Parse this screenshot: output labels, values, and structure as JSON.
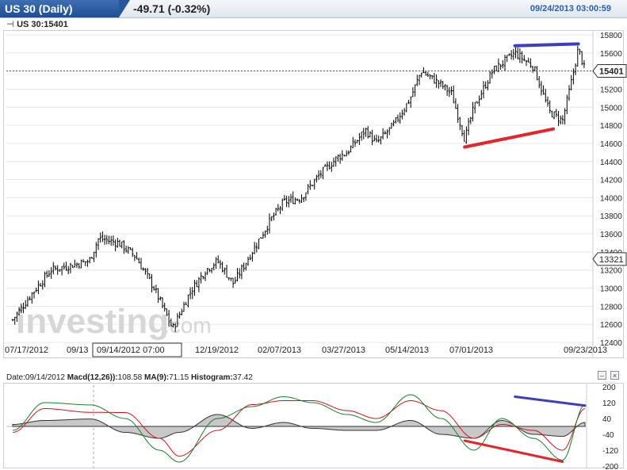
{
  "header": {
    "title": "US 30 (Daily)",
    "change": "-49.71 (-0.32%)",
    "datetime": "09/24/2013 03:00:59"
  },
  "symbol_line": "US 30:15401",
  "icons": {
    "cursor": "crosshair-icon",
    "minimize": "minimize-icon",
    "close": "close-icon"
  },
  "watermark": {
    "left": "investing",
    "right": ".com"
  },
  "colors": {
    "up_tick": "#000000",
    "trend_upper": "#3e3ebd",
    "trend_lower": "#e3262b",
    "macd_line": "#1b7d2a",
    "signal_line": "#c9161d",
    "histogram": "#808080"
  },
  "macd_header": {
    "date": "Date:09/14/2012",
    "macd_label": "Macd(12,26)):",
    "macd_value": "108.58",
    "ma_label": "MA(9):",
    "ma_value": "71.15",
    "hist_label": "Histogram:",
    "hist_value": "37.42"
  },
  "chart_data": [
    {
      "type": "ohlc",
      "title": "US 30 (Daily)",
      "ylim": [
        12400,
        15800
      ],
      "y_ticks": [
        15800,
        15600,
        15400,
        15200,
        15000,
        14800,
        14600,
        14400,
        14200,
        14000,
        13800,
        13600,
        13400,
        13200,
        13000,
        12800,
        12600,
        12400
      ],
      "x_ticks": [
        "07/17/2012",
        "09/13",
        "09/14/2012 07:00",
        "12/19/2012",
        "02/07/2013",
        "03/27/2013",
        "05/14/2013",
        "07/01/2013",
        "09/23/2013"
      ],
      "last_price": 15401,
      "crosshair_price": 13321,
      "close_path_dates": [
        "07/17/2012",
        "08/01/2012",
        "08/15/2012",
        "09/13/2012",
        "09/20/2012",
        "10/05/2012",
        "10/18/2012",
        "11/01/2012",
        "11/15/2012",
        "11/28/2012",
        "12/10/2012",
        "12/19/2012",
        "12/31/2012",
        "01/14/2013",
        "01/28/2013",
        "02/07/2013",
        "02/20/2013",
        "03/06/2013",
        "03/20/2013",
        "03/27/2013",
        "04/10/2013",
        "04/18/2013",
        "05/01/2013",
        "05/14/2013",
        "05/22/2013",
        "06/06/2013",
        "06/14/2013",
        "06/24/2013",
        "07/01/2013",
        "07/15/2013",
        "08/01/2013",
        "08/15/2013",
        "08/27/2013",
        "09/06/2013",
        "09/13/2013",
        "09/18/2013",
        "09/23/2013"
      ],
      "close_path_values": [
        12650,
        12950,
        13200,
        13300,
        13550,
        13500,
        13350,
        13000,
        12550,
        12950,
        13200,
        13300,
        13050,
        13400,
        13750,
        13950,
        14000,
        14250,
        14450,
        14500,
        14750,
        14600,
        14800,
        15100,
        15400,
        15250,
        15150,
        14650,
        15000,
        15400,
        15600,
        15450,
        14950,
        14850,
        15300,
        15650,
        15401
      ],
      "trendlines": [
        {
          "color": "#3e3ebd",
          "from": {
            "date": "08/01/2013",
            "value": 15680
          },
          "to": {
            "date": "09/18/2013",
            "value": 15700
          }
        },
        {
          "color": "#e3262b",
          "from": {
            "date": "06/24/2013",
            "value": 14560
          },
          "to": {
            "date": "08/30/2013",
            "value": 14760
          }
        }
      ]
    },
    {
      "type": "line",
      "title": "MACD",
      "ylim": [
        -200,
        200
      ],
      "y_ticks": [
        200,
        120,
        40,
        -40,
        -120,
        -200
      ],
      "x_dates": [
        "07/17/2012",
        "08/10/2012",
        "09/14/2012",
        "10/10/2012",
        "11/05/2012",
        "11/20/2012",
        "12/19/2012",
        "01/14/2013",
        "02/07/2013",
        "03/01/2013",
        "03/27/2013",
        "04/18/2013",
        "05/14/2013",
        "06/06/2013",
        "07/01/2013",
        "07/22/2013",
        "08/15/2013",
        "09/06/2013",
        "09/23/2013"
      ],
      "series": [
        {
          "name": "Macd(12,26))",
          "values": [
            -20,
            120,
            108.58,
            40,
            -120,
            -180,
            40,
            100,
            150,
            120,
            60,
            20,
            160,
            40,
            -120,
            40,
            -60,
            -170,
            110
          ]
        },
        {
          "name": "MA(9)",
          "values": [
            -30,
            90,
            71.15,
            70,
            -60,
            -150,
            -20,
            110,
            130,
            130,
            80,
            40,
            130,
            80,
            -60,
            10,
            -20,
            -120,
            90
          ]
        },
        {
          "name": "Histogram",
          "values": [
            10,
            30,
            37.42,
            -30,
            -60,
            -30,
            60,
            -10,
            20,
            -10,
            -20,
            -20,
            30,
            -40,
            -60,
            30,
            -40,
            -50,
            20
          ]
        }
      ],
      "trendlines": [
        {
          "color": "#3e3ebd",
          "from": {
            "date": "08/01/2013",
            "value": 150
          },
          "to": {
            "date": "09/23/2013",
            "value": 105
          }
        },
        {
          "color": "#e3262b",
          "from": {
            "date": "06/24/2013",
            "value": -72
          },
          "to": {
            "date": "09/06/2013",
            "value": -178
          }
        }
      ]
    }
  ]
}
